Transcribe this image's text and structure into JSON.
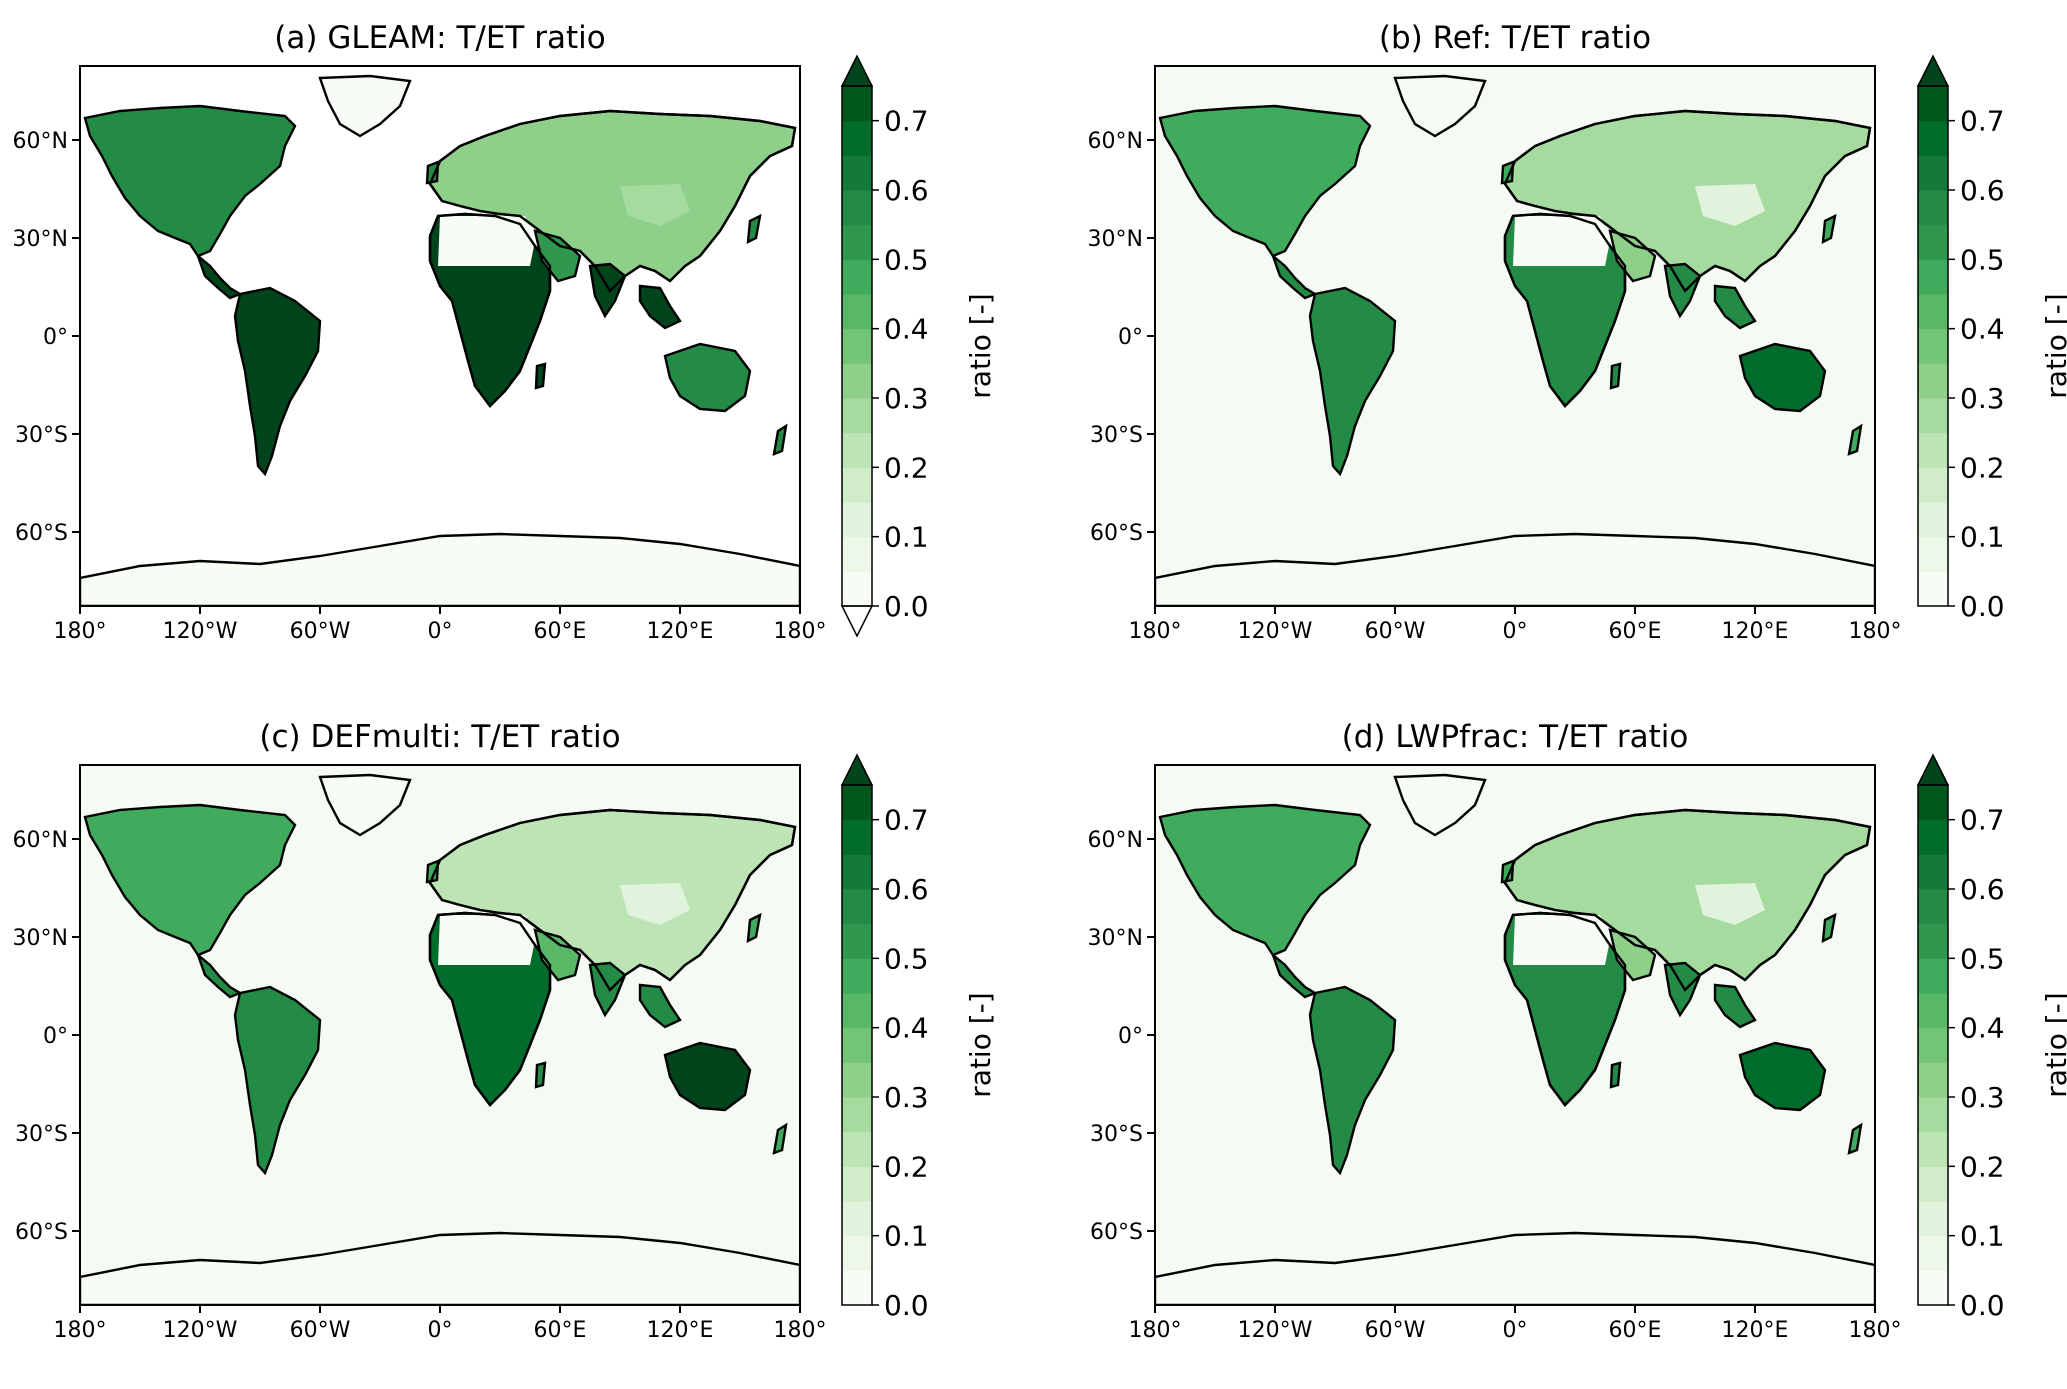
{
  "figure": {
    "panels": [
      {
        "title": "(a) GLEAM: T/ET ratio",
        "ocean": "#ffffff",
        "extend_min": true,
        "regions": {
          "boreal": 0.35,
          "temperate": 0.55,
          "tropics": 0.75,
          "sahara": 0.02,
          "sahel": 0.75,
          "arid": 0.5,
          "australia": 0.6,
          "greenland": 0.02,
          "antarctica": 0.03,
          "tibet": 0.3
        }
      },
      {
        "title": "(b) Ref: T/ET ratio",
        "ocean": "#f5fbf3",
        "extend_min": false,
        "regions": {
          "boreal": 0.25,
          "temperate": 0.45,
          "tropics": 0.55,
          "sahara": 0.0,
          "sahel": 0.6,
          "arid": 0.35,
          "australia": 0.7,
          "greenland": 0.0,
          "antarctica": 0.0,
          "tibet": 0.15
        }
      },
      {
        "title": "(c) DEFmulti: T/ET ratio",
        "ocean": "#f5fbf3",
        "extend_min": false,
        "regions": {
          "boreal": 0.22,
          "temperate": 0.45,
          "tropics": 0.6,
          "sahara": 0.0,
          "sahel": 0.65,
          "arid": 0.4,
          "australia": 0.75,
          "greenland": 0.0,
          "antarctica": 0.0,
          "tibet": 0.1
        }
      },
      {
        "title": "(d) LWPfrac: T/ET ratio",
        "ocean": "#f5fbf3",
        "extend_min": false,
        "regions": {
          "boreal": 0.25,
          "temperate": 0.45,
          "tropics": 0.55,
          "sahara": 0.0,
          "sahel": 0.6,
          "arid": 0.35,
          "australia": 0.7,
          "greenland": 0.0,
          "antarctica": 0.0,
          "tibet": 0.15
        }
      }
    ],
    "lon_ticks": [
      "180°",
      "120°W",
      "60°W",
      "0°",
      "60°E",
      "120°E",
      "180°"
    ],
    "lat_ticks": [
      "60°N",
      "30°N",
      "0°",
      "30°S",
      "60°S"
    ],
    "colorbar": {
      "label": "ratio [-]",
      "ticks": [
        "0.0",
        "0.1",
        "0.2",
        "0.3",
        "0.4",
        "0.5",
        "0.6",
        "0.7"
      ],
      "levels": 15,
      "colors": [
        "#f7fcf5",
        "#edf8e9",
        "#e1f3dc",
        "#d0ecc9",
        "#bce4b5",
        "#a6dba0",
        "#8ecf8a",
        "#74c476",
        "#5ab768",
        "#41ab5d",
        "#2f974e",
        "#238b45",
        "#137a3b",
        "#006d2c",
        "#00581f"
      ],
      "extend_color": "#00441b"
    }
  }
}
